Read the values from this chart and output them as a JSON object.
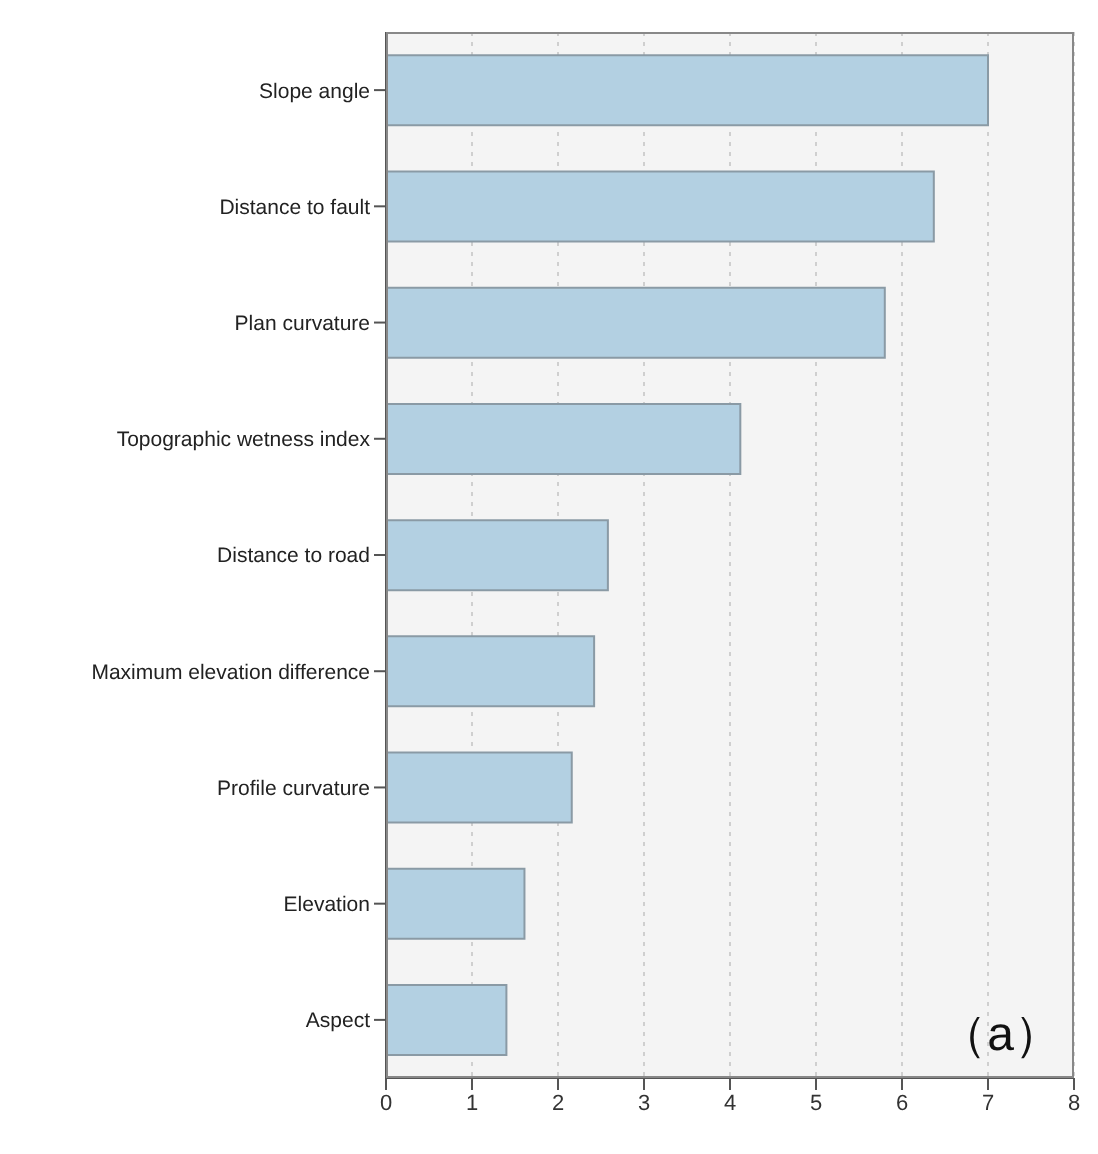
{
  "chart_data": {
    "type": "bar",
    "orientation": "horizontal",
    "categories": [
      "Slope angle",
      "Distance to fault",
      "Plan curvature",
      "Topographic wetness index",
      "Distance to road",
      "Maximum elevation difference",
      "Profile curvature",
      "Elevation",
      "Aspect"
    ],
    "values": [
      7.0,
      6.37,
      5.8,
      4.12,
      2.58,
      2.42,
      2.16,
      1.61,
      1.4
    ],
    "color": "#b3d0e2",
    "xlim": [
      0,
      8
    ],
    "xticks": [
      0,
      1,
      2,
      3,
      4,
      5,
      6,
      7,
      8
    ],
    "grid": "x",
    "annotations": [
      "（a）"
    ]
  }
}
